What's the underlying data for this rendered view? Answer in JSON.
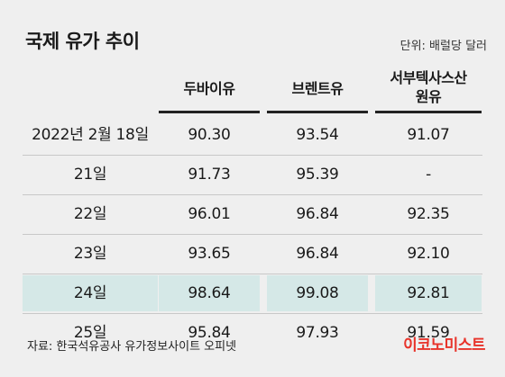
{
  "title": "국제 유가 추이",
  "unit": "단위: 배럴당 달러",
  "headers": {
    "dubai": "두바이유",
    "brent": "브렌트유",
    "wti_line1": "서부텍사스산",
    "wti_line2": "원유"
  },
  "rows": [
    {
      "date": "2022년 2월 18일",
      "dubai": "90.30",
      "brent": "93.54",
      "wti": "91.07"
    },
    {
      "date": "21일",
      "dubai": "91.73",
      "brent": "95.39",
      "wti": "-"
    },
    {
      "date": "22일",
      "dubai": "96.01",
      "brent": "96.84",
      "wti": "92.35"
    },
    {
      "date": "23일",
      "dubai": "93.65",
      "brent": "96.84",
      "wti": "92.10"
    },
    {
      "date": "24일",
      "dubai": "98.64",
      "brent": "99.08",
      "wti": "92.81"
    },
    {
      "date": "25일",
      "dubai": "95.84",
      "brent": "97.93",
      "wti": "91.59"
    }
  ],
  "highlight_row": 4,
  "highlight_color": "#d5e8e7",
  "logo_color": "#e8332a",
  "source": "자료: 한국석유공사 유가정보사이트 오피넷",
  "logo": "이코노미스트"
}
